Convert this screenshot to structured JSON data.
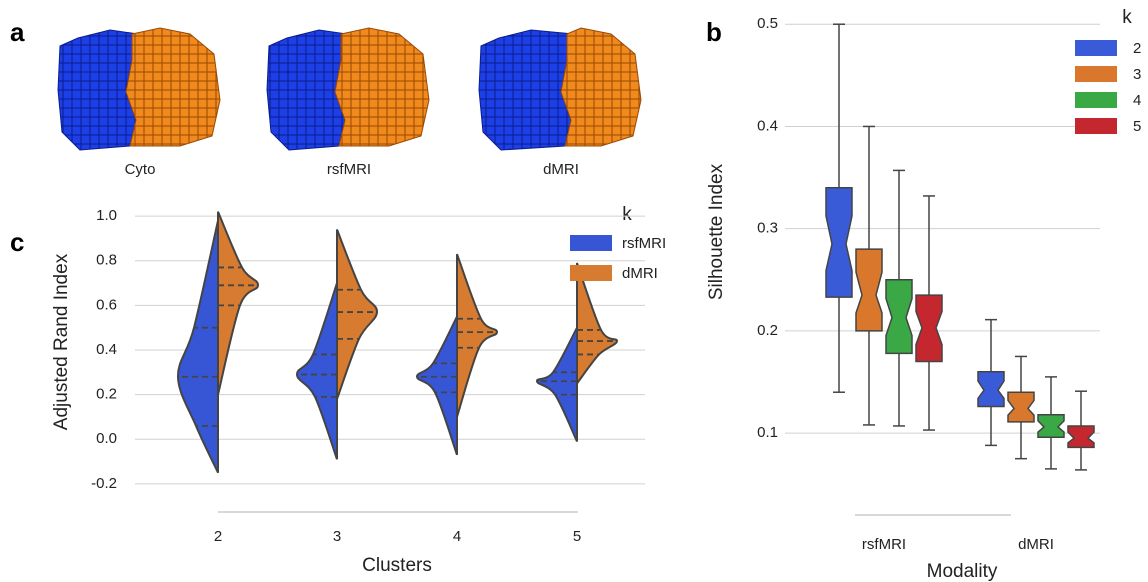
{
  "panel_labels": [
    "a",
    "b",
    "c"
  ],
  "brain_views": [
    "Cyto",
    "rsfMRI",
    "dMRI"
  ],
  "chart_data": [
    {
      "type": "violin",
      "x_label": "Clusters",
      "y_label": "Adjusted Rand Index",
      "categories": [
        "2",
        "3",
        "4",
        "5"
      ],
      "ylim": [
        -0.25,
        1.05
      ],
      "yticks": [
        -0.2,
        {
          "value": 0,
          "label": "0.0"
        },
        0.2,
        0.4,
        0.6,
        0.8,
        {
          "value": 1,
          "label": "1.0"
        }
      ],
      "grid": true,
      "legend_title": "k",
      "legend_position": "upper right",
      "series": [
        {
          "name": "rsfMRI",
          "color": "#3656d6",
          "values": [
            {
              "min": -0.15,
              "q1": 0.06,
              "median": 0.28,
              "q3": 0.5,
              "max": 0.98
            },
            {
              "min": -0.09,
              "q1": 0.19,
              "median": 0.29,
              "q3": 0.38,
              "max": 0.7
            },
            {
              "min": -0.07,
              "q1": 0.21,
              "median": 0.28,
              "q3": 0.34,
              "max": 0.55
            },
            {
              "min": -0.01,
              "q1": 0.2,
              "median": 0.26,
              "q3": 0.3,
              "max": 0.5
            }
          ]
        },
        {
          "name": "dMRI",
          "color": "#d77b30",
          "values": [
            {
              "min": 0.2,
              "q1": 0.6,
              "median": 0.69,
              "q3": 0.77,
              "max": 1.02
            },
            {
              "min": 0.18,
              "q1": 0.45,
              "median": 0.57,
              "q3": 0.67,
              "max": 0.94
            },
            {
              "min": 0.1,
              "q1": 0.41,
              "median": 0.48,
              "q3": 0.54,
              "max": 0.83
            },
            {
              "min": 0.25,
              "q1": 0.38,
              "median": 0.44,
              "q3": 0.49,
              "max": 0.79
            }
          ]
        }
      ]
    },
    {
      "type": "box",
      "x_label": "Modality",
      "y_label": "Silhouette Index",
      "categories": [
        "rsfMRI",
        "dMRI"
      ],
      "ylim": [
        0.06,
        0.51
      ],
      "yticks": [
        0.1,
        0.2,
        0.3,
        0.4,
        0.5
      ],
      "grid": true,
      "notch": true,
      "legend_title": "k",
      "legend_position": "upper right",
      "series": [
        {
          "name": "2",
          "color": "#3a5bd8",
          "values": [
            {
              "min": 0.14,
              "q1": 0.233,
              "median": 0.285,
              "q3": 0.34,
              "max": 0.5
            },
            {
              "min": 0.088,
              "q1": 0.126,
              "median": 0.142,
              "q3": 0.16,
              "max": 0.211
            }
          ]
        },
        {
          "name": "3",
          "color": "#d9782d",
          "values": [
            {
              "min": 0.108,
              "q1": 0.2,
              "median": 0.235,
              "q3": 0.28,
              "max": 0.4
            },
            {
              "min": 0.075,
              "q1": 0.111,
              "median": 0.124,
              "q3": 0.14,
              "max": 0.175
            }
          ]
        },
        {
          "name": "4",
          "color": "#3aa845",
          "values": [
            {
              "min": 0.107,
              "q1": 0.178,
              "median": 0.213,
              "q3": 0.25,
              "max": 0.357
            },
            {
              "min": 0.065,
              "q1": 0.096,
              "median": 0.106,
              "q3": 0.118,
              "max": 0.155
            }
          ]
        },
        {
          "name": "5",
          "color": "#c4282e",
          "values": [
            {
              "min": 0.103,
              "q1": 0.17,
              "median": 0.203,
              "q3": 0.235,
              "max": 0.332
            },
            {
              "min": 0.064,
              "q1": 0.086,
              "median": 0.095,
              "q3": 0.107,
              "max": 0.141
            }
          ]
        }
      ]
    }
  ]
}
